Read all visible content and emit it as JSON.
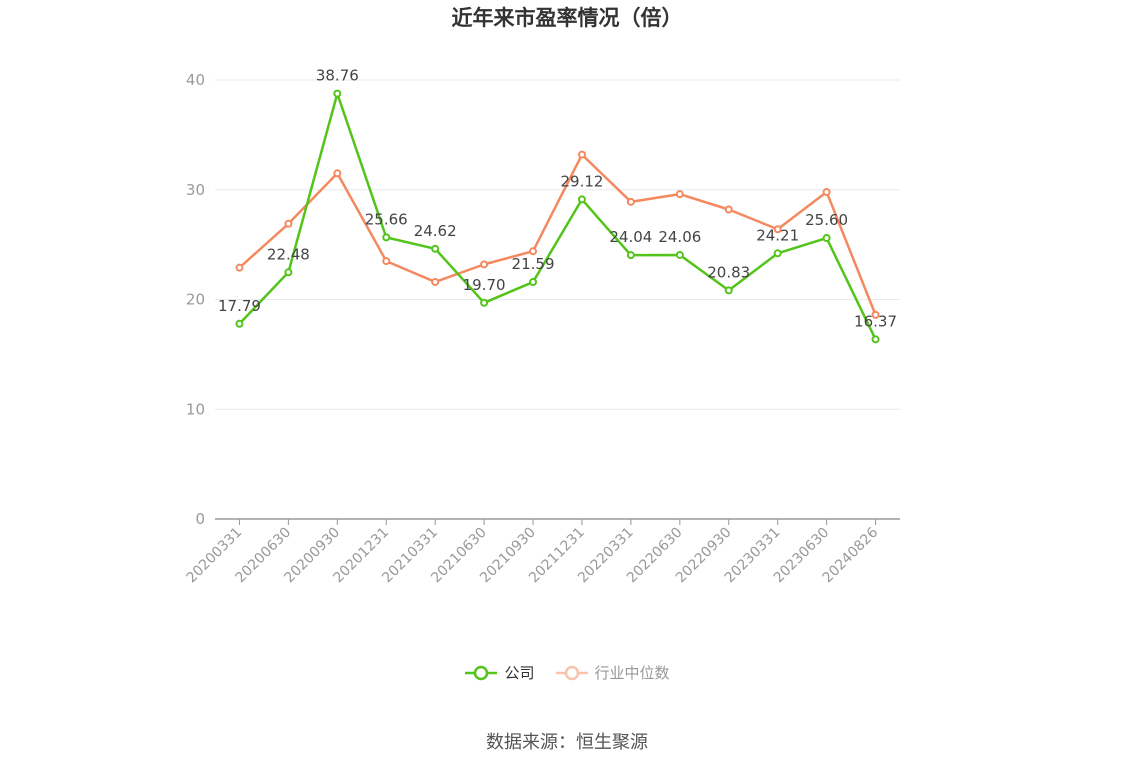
{
  "chart_data": {
    "type": "line",
    "title": "近年来市盈率情况（倍）",
    "categories": [
      "20200331",
      "20200630",
      "20200930",
      "20201231",
      "20210331",
      "20210630",
      "20210930",
      "20211231",
      "20220331",
      "20220630",
      "20220930",
      "20230331",
      "20230630",
      "20240826"
    ],
    "series": [
      {
        "name": "公司",
        "color": "#52c41a",
        "values": [
          17.79,
          22.48,
          38.76,
          25.66,
          24.62,
          19.7,
          21.59,
          29.12,
          24.04,
          24.06,
          20.83,
          24.21,
          25.6,
          16.37
        ],
        "labels": [
          "17.79",
          "22.48",
          "38.76",
          "25.66",
          "24.62",
          "19.70",
          "21.59",
          "29.12",
          "24.04",
          "24.06",
          "20.83",
          "24.21",
          "25.60",
          "16.37"
        ],
        "show_labels": true
      },
      {
        "name": "行业中位数",
        "color": "#f4895f",
        "values": [
          22.9,
          26.9,
          31.5,
          23.5,
          21.6,
          23.2,
          24.4,
          33.2,
          28.9,
          29.6,
          28.2,
          26.4,
          29.8,
          18.6
        ],
        "show_labels": false
      }
    ],
    "y_ticks": [
      "0",
      "10",
      "20",
      "30",
      "40"
    ],
    "ylim": [
      0,
      40
    ],
    "grid": true,
    "legend_position": "bottom",
    "source": "数据来源：恒生聚源"
  }
}
